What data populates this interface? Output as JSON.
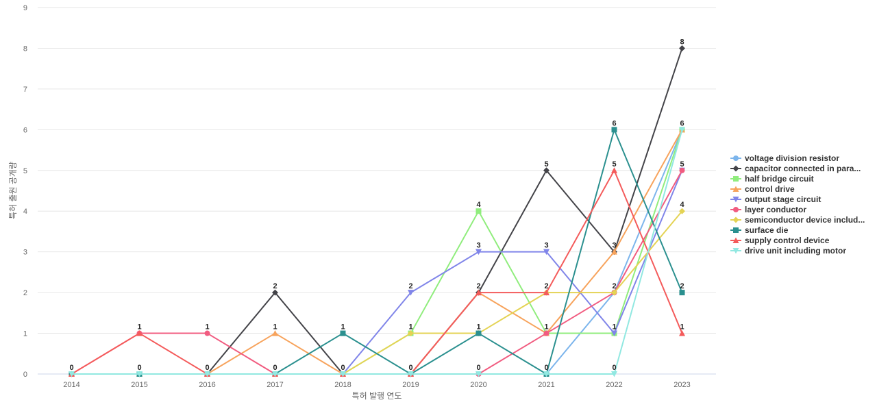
{
  "chart_data": {
    "type": "line",
    "title": "",
    "xlabel": "특허 발행 연도",
    "ylabel": "특허 출원 공개량",
    "ylim": [
      0,
      9
    ],
    "yticks": [
      0,
      1,
      2,
      3,
      4,
      5,
      6,
      7,
      8,
      9
    ],
    "grid": "horizontal",
    "legend_position": "right",
    "categories": [
      "2014",
      "2015",
      "2016",
      "2017",
      "2018",
      "2019",
      "2020",
      "2021",
      "2022",
      "2023"
    ],
    "series": [
      {
        "name": "voltage division resistor",
        "color": "#7cb5ec",
        "marker": "circle",
        "values": [
          0,
          0,
          0,
          0,
          0,
          0,
          0,
          0,
          2,
          6
        ]
      },
      {
        "name": "capacitor connected in para...",
        "color": "#434348",
        "marker": "diamond",
        "values": [
          0,
          0,
          0,
          2,
          0,
          0,
          2,
          5,
          3,
          8
        ]
      },
      {
        "name": "half bridge circuit",
        "color": "#90ed7d",
        "marker": "square",
        "values": [
          0,
          0,
          0,
          0,
          0,
          1,
          4,
          1,
          1,
          6
        ]
      },
      {
        "name": "control drive",
        "color": "#f7a35c",
        "marker": "triangle",
        "values": [
          0,
          0,
          0,
          1,
          0,
          0,
          2,
          1,
          3,
          6
        ]
      },
      {
        "name": "output stage circuit",
        "color": "#8085e9",
        "marker": "triangle-down",
        "values": [
          0,
          0,
          0,
          0,
          0,
          2,
          3,
          3,
          1,
          5
        ]
      },
      {
        "name": "layer conductor",
        "color": "#f15c80",
        "marker": "circle",
        "values": [
          0,
          1,
          1,
          0,
          0,
          0,
          0,
          1,
          2,
          5
        ]
      },
      {
        "name": "semiconductor device includ...",
        "color": "#e4d354",
        "marker": "diamond",
        "values": [
          0,
          0,
          0,
          0,
          0,
          1,
          1,
          2,
          2,
          4
        ]
      },
      {
        "name": "surface die",
        "color": "#2b908f",
        "marker": "square",
        "values": [
          0,
          0,
          0,
          0,
          1,
          0,
          1,
          0,
          6,
          2
        ]
      },
      {
        "name": "supply control device",
        "color": "#f45b5b",
        "marker": "triangle",
        "values": [
          0,
          1,
          0,
          0,
          0,
          0,
          2,
          2,
          5,
          1
        ]
      },
      {
        "name": "drive unit including motor",
        "color": "#91e8e1",
        "marker": "triangle-down",
        "values": [
          0,
          0,
          0,
          0,
          0,
          0,
          0,
          0,
          0,
          6
        ]
      }
    ],
    "data_labels": [
      {
        "x": "2014",
        "value": "0"
      },
      {
        "x": "2015",
        "value": "1"
      },
      {
        "x": "2015",
        "value": "0"
      },
      {
        "x": "2016",
        "value": "1"
      },
      {
        "x": "2016",
        "value": "0"
      },
      {
        "x": "2017",
        "value": "2"
      },
      {
        "x": "2017",
        "value": "1"
      },
      {
        "x": "2017",
        "value": "0"
      },
      {
        "x": "2018",
        "value": "1"
      },
      {
        "x": "2018",
        "value": "0"
      },
      {
        "x": "2019",
        "value": "2"
      },
      {
        "x": "2019",
        "value": "1"
      },
      {
        "x": "2019",
        "value": "0"
      },
      {
        "x": "2020",
        "value": "4"
      },
      {
        "x": "2020",
        "value": "3"
      },
      {
        "x": "2020",
        "value": "2"
      },
      {
        "x": "2020",
        "value": "1"
      },
      {
        "x": "2020",
        "value": "0"
      },
      {
        "x": "2021",
        "value": "5"
      },
      {
        "x": "2021",
        "value": "3"
      },
      {
        "x": "2021",
        "value": "2"
      },
      {
        "x": "2021",
        "value": "1"
      },
      {
        "x": "2021",
        "value": "0"
      },
      {
        "x": "2022",
        "value": "6"
      },
      {
        "x": "2022",
        "value": "5"
      },
      {
        "x": "2022",
        "value": "3"
      },
      {
        "x": "2022",
        "value": "2"
      },
      {
        "x": "2022",
        "value": "1"
      },
      {
        "x": "2022",
        "value": "0"
      },
      {
        "x": "2023",
        "value": "8"
      },
      {
        "x": "2023",
        "value": "6"
      },
      {
        "x": "2023",
        "value": "5"
      },
      {
        "x": "2023",
        "value": "4"
      },
      {
        "x": "2023",
        "value": "2"
      },
      {
        "x": "2023",
        "value": "1"
      }
    ]
  }
}
